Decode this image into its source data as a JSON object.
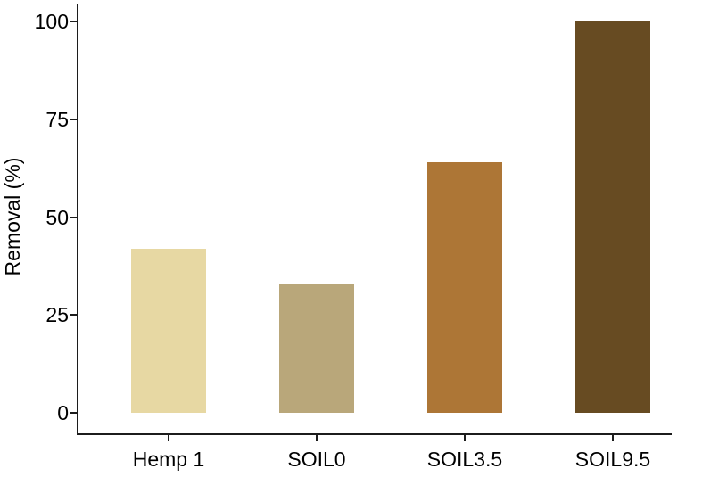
{
  "chart_data": {
    "type": "bar",
    "title": "",
    "xlabel": "",
    "ylabel": "Removal (%)",
    "categories": [
      "Hemp 1",
      "SOIL0",
      "SOIL3.5",
      "SOIL9.5"
    ],
    "values": [
      42,
      33,
      64,
      100
    ],
    "bar_colors": [
      "#e7d8a3",
      "#b9a77a",
      "#ad7636",
      "#674b22"
    ],
    "yticks": [
      0,
      25,
      50,
      75,
      100
    ],
    "ylim": [
      0,
      100
    ],
    "grid": false,
    "legend": false,
    "axis_color": "#1c1c1c",
    "text_color": "#000000",
    "background_color": "#ffffff"
  }
}
